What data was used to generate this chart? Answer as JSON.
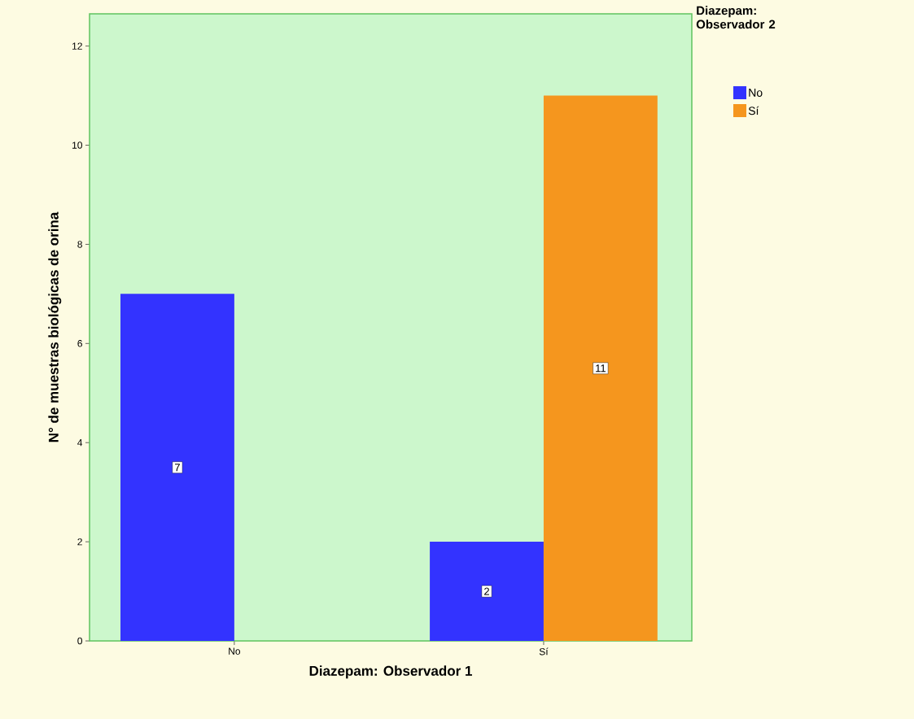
{
  "chart_data": {
    "type": "bar",
    "xlabel": "Diazepam: Observador 1",
    "ylabel": "N° de muestras biológicas de orina",
    "legend_title": "Diazepam: Observador 2",
    "categories": [
      "No",
      "Sí"
    ],
    "series": [
      {
        "name": "No",
        "color": "#3333ff",
        "values": [
          7,
          2
        ]
      },
      {
        "name": "Sí",
        "color": "#f5961e",
        "values": [
          null,
          11
        ]
      }
    ],
    "ylim": [
      0,
      12.65
    ],
    "yticks": [
      0,
      2,
      4,
      6,
      8,
      10,
      12
    ],
    "data_labels": true,
    "grid": false,
    "legend": "top right"
  }
}
